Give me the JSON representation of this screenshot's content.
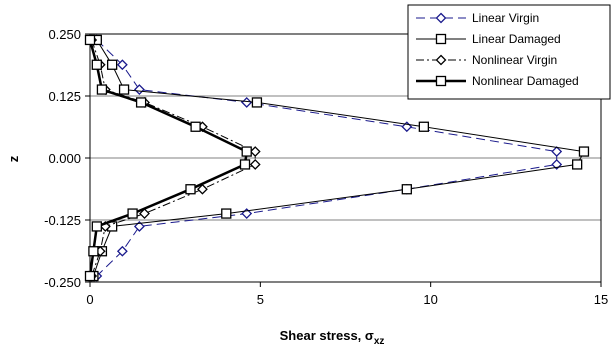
{
  "chart_data": {
    "type": "line",
    "xlabel": "Shear stress, ",
    "xlabel_symbol": "σ",
    "xlabel_subscript": "xz",
    "ylabel": "z",
    "xlim": [
      0,
      15
    ],
    "ylim": [
      -0.25,
      0.25
    ],
    "x_ticks": [
      "0",
      "5",
      "10",
      "15"
    ],
    "y_ticks": [
      "0.250",
      "0.125",
      "0.000",
      "-0.125",
      "-0.250"
    ],
    "grid": "horizontal",
    "legend_position": "top-right",
    "series": [
      {
        "name": "Linear Virgin",
        "color": "#1a1a8c",
        "line": "dashed",
        "marker": "diamond",
        "points": [
          [
            0.2,
            0.238
          ],
          [
            0.95,
            0.188
          ],
          [
            1.45,
            0.138
          ],
          [
            4.6,
            0.112
          ],
          [
            9.3,
            0.063
          ],
          [
            13.7,
            0.013
          ],
          [
            13.7,
            -0.013
          ],
          [
            9.3,
            -0.063
          ],
          [
            4.6,
            -0.112
          ],
          [
            1.45,
            -0.138
          ],
          [
            0.95,
            -0.188
          ],
          [
            0.2,
            -0.238
          ]
        ]
      },
      {
        "name": "Linear Damaged",
        "color": "#000000",
        "line": "solid-thin",
        "marker": "square",
        "points": [
          [
            0.2,
            0.238
          ],
          [
            0.65,
            0.188
          ],
          [
            1.0,
            0.138
          ],
          [
            4.9,
            0.112
          ],
          [
            9.8,
            0.063
          ],
          [
            14.5,
            0.013
          ],
          [
            14.3,
            -0.013
          ],
          [
            9.3,
            -0.063
          ],
          [
            4.0,
            -0.112
          ],
          [
            0.65,
            -0.138
          ],
          [
            0.35,
            -0.188
          ],
          [
            0.1,
            -0.238
          ]
        ]
      },
      {
        "name": "Nonlinear Virgin",
        "color": "#000000",
        "line": "dash-dot",
        "marker": "diamond",
        "points": [
          [
            0.05,
            0.238
          ],
          [
            0.3,
            0.188
          ],
          [
            0.45,
            0.138
          ],
          [
            1.6,
            0.112
          ],
          [
            3.3,
            0.063
          ],
          [
            4.85,
            0.013
          ],
          [
            4.85,
            -0.013
          ],
          [
            3.3,
            -0.063
          ],
          [
            1.6,
            -0.112
          ],
          [
            0.45,
            -0.138
          ],
          [
            0.3,
            -0.188
          ],
          [
            0.05,
            -0.238
          ]
        ]
      },
      {
        "name": "Nonlinear Damaged",
        "color": "#000000",
        "line": "solid-thick",
        "marker": "square",
        "points": [
          [
            0.0,
            0.238
          ],
          [
            0.2,
            0.188
          ],
          [
            0.35,
            0.138
          ],
          [
            1.5,
            0.112
          ],
          [
            3.1,
            0.063
          ],
          [
            4.6,
            0.013
          ],
          [
            4.55,
            -0.013
          ],
          [
            2.95,
            -0.063
          ],
          [
            1.25,
            -0.112
          ],
          [
            0.2,
            -0.138
          ],
          [
            0.1,
            -0.188
          ],
          [
            0.0,
            -0.238
          ]
        ]
      }
    ]
  }
}
